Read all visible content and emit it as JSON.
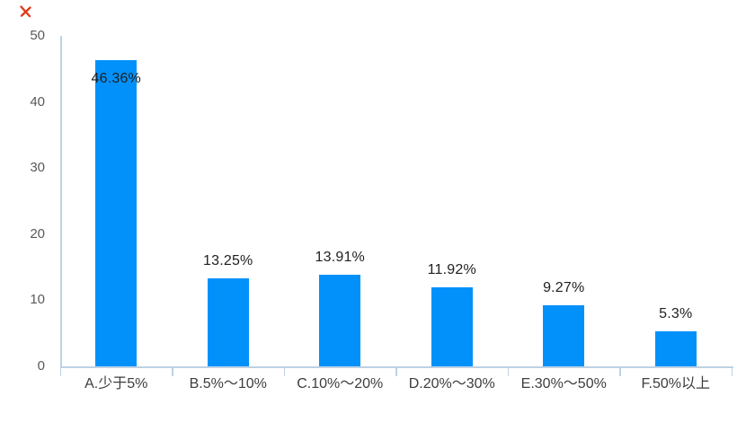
{
  "decorations": {
    "red_mark": {
      "name": "red-scribble-mark",
      "color": "#e23a1c"
    }
  },
  "chart_data": {
    "type": "bar",
    "title": "",
    "xlabel": "",
    "ylabel": "",
    "categories": [
      "A.少于5%",
      "B.5%～10%",
      "C.10%～20%",
      "D.20%～30%",
      "E.30%～50%",
      "F.50%以上"
    ],
    "values": [
      46.36,
      13.25,
      13.91,
      11.92,
      9.27,
      5.3
    ],
    "value_labels": [
      "46.36%",
      "13.25%",
      "13.91%",
      "11.92%",
      "9.27%",
      "5.3%"
    ],
    "ylim": [
      0,
      50
    ],
    "yticks": [
      0,
      10,
      20,
      30,
      40,
      50
    ],
    "grid": false,
    "legend_position": "none",
    "bar_color": "#0291fb",
    "axis_color": "#bdd2e4",
    "ytick_label_color": "#595959",
    "category_label_color": "#3d3d3d",
    "value_label_color": "#1f1f1f",
    "value_label_placement": [
      "inside-top",
      "above",
      "above",
      "above",
      "above",
      "above"
    ]
  }
}
